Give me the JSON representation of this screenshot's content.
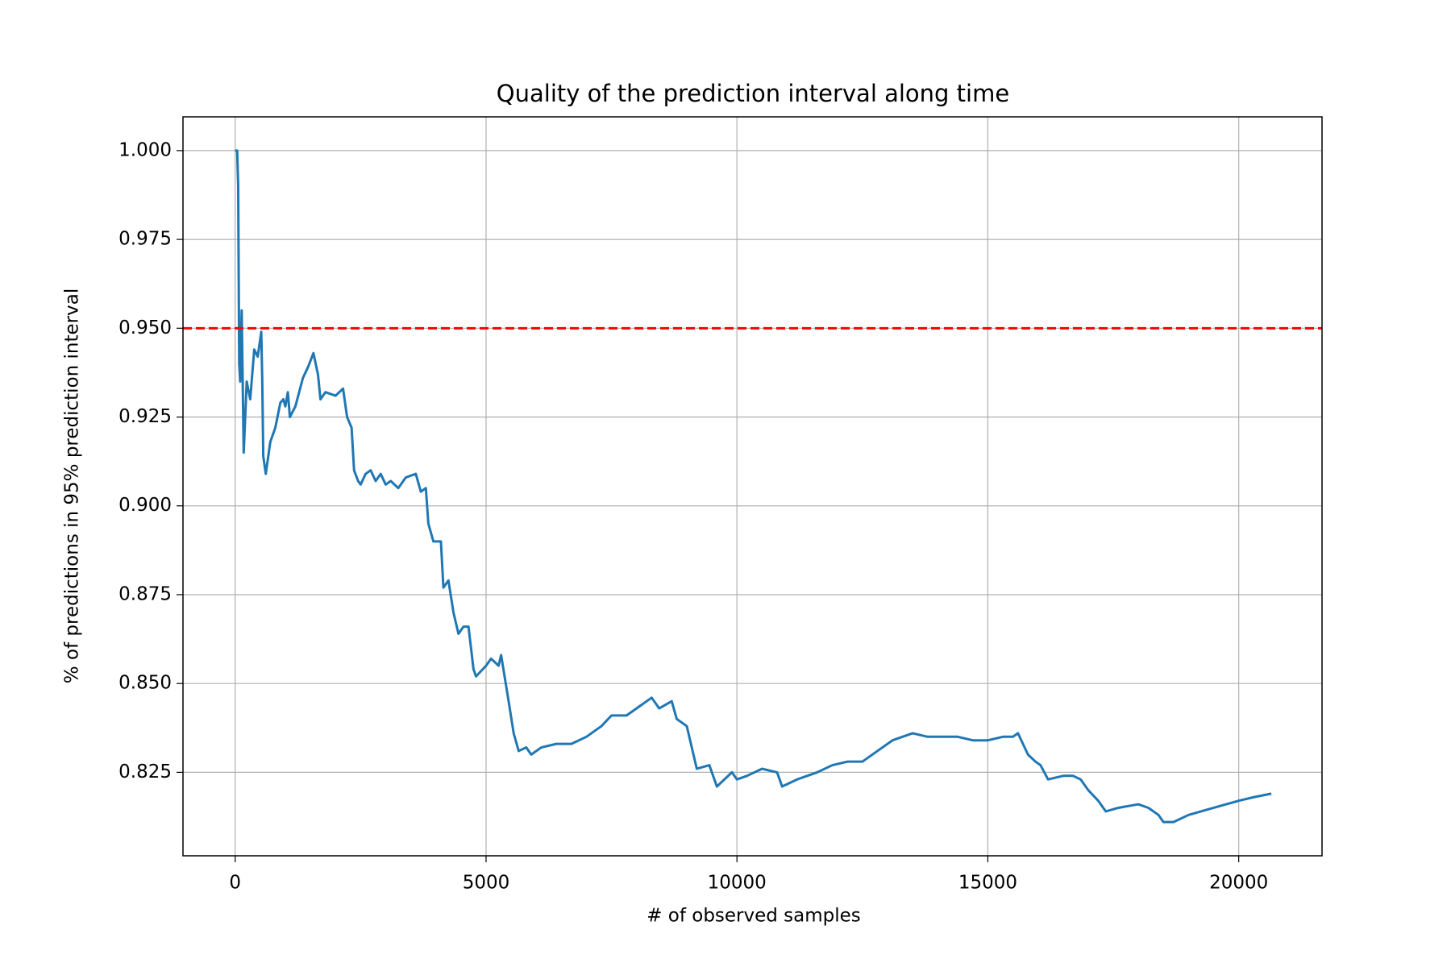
{
  "chart_data": {
    "type": "line",
    "title": "Quality of the prediction interval along time",
    "x_label": "# of observed samples",
    "y_label": "% of predictions in 95% prediction interval",
    "xlim": [
      -1040,
      21660
    ],
    "ylim": [
      0.8015,
      1.0095
    ],
    "xticks": [
      0,
      5000,
      10000,
      15000,
      20000
    ],
    "yticks": [
      {
        "value": 0.825,
        "label": "0.825"
      },
      {
        "value": 0.85,
        "label": "0.850"
      },
      {
        "value": 0.875,
        "label": "0.875"
      },
      {
        "value": 0.9,
        "label": "0.900"
      },
      {
        "value": 0.925,
        "label": "0.925"
      },
      {
        "value": 0.95,
        "label": "0.950"
      },
      {
        "value": 0.975,
        "label": "0.975"
      },
      {
        "value": 1.0,
        "label": "1.000"
      }
    ],
    "grid": true,
    "reference_line": {
      "value": 0.95,
      "color": "#ff0000"
    },
    "series": [
      {
        "color": "#1f77b4",
        "x": [
          0,
          40,
          60,
          80,
          100,
          130,
          170,
          230,
          300,
          380,
          450,
          520,
          540,
          560,
          610,
          700,
          800,
          900,
          960,
          1000,
          1050,
          1090,
          1200,
          1350,
          1450,
          1560,
          1650,
          1700,
          1800,
          2000,
          2150,
          2230,
          2320,
          2370,
          2450,
          2500,
          2600,
          2700,
          2800,
          2900,
          3000,
          3100,
          3250,
          3400,
          3600,
          3700,
          3800,
          3850,
          3950,
          4100,
          4150,
          4250,
          4350,
          4450,
          4550,
          4650,
          4750,
          4800,
          5000,
          5100,
          5250,
          5300,
          5450,
          5550,
          5650,
          5800,
          5900,
          6100,
          6400,
          6700,
          7000,
          7300,
          7500,
          7800,
          8100,
          8300,
          8450,
          8700,
          8800,
          9000,
          9100,
          9200,
          9450,
          9600,
          9900,
          10000,
          10200,
          10500,
          10800,
          10900,
          11200,
          11600,
          11900,
          12200,
          12500,
          12800,
          13100,
          13500,
          13800,
          14100,
          14400,
          14700,
          15000,
          15300,
          15500,
          15600,
          15800,
          15950,
          16050,
          16200,
          16500,
          16700,
          16850,
          17000,
          17200,
          17350,
          17600,
          18000,
          18200,
          18400,
          18500,
          18700,
          19000,
          19500,
          20000,
          20300,
          20650
        ],
        "values": [
          1.0,
          1.0,
          0.99,
          0.94,
          0.935,
          0.955,
          0.915,
          0.935,
          0.93,
          0.944,
          0.942,
          0.949,
          0.935,
          0.914,
          0.909,
          0.918,
          0.922,
          0.929,
          0.93,
          0.928,
          0.932,
          0.925,
          0.928,
          0.936,
          0.939,
          0.943,
          0.937,
          0.93,
          0.932,
          0.931,
          0.933,
          0.925,
          0.922,
          0.91,
          0.907,
          0.906,
          0.909,
          0.91,
          0.907,
          0.909,
          0.906,
          0.907,
          0.905,
          0.908,
          0.909,
          0.904,
          0.905,
          0.895,
          0.89,
          0.89,
          0.877,
          0.879,
          0.87,
          0.864,
          0.866,
          0.866,
          0.854,
          0.852,
          0.855,
          0.857,
          0.855,
          0.858,
          0.845,
          0.836,
          0.831,
          0.832,
          0.83,
          0.832,
          0.833,
          0.833,
          0.835,
          0.838,
          0.841,
          0.841,
          0.844,
          0.846,
          0.843,
          0.845,
          0.84,
          0.838,
          0.832,
          0.826,
          0.827,
          0.821,
          0.825,
          0.823,
          0.824,
          0.826,
          0.825,
          0.821,
          0.823,
          0.825,
          0.827,
          0.828,
          0.828,
          0.831,
          0.834,
          0.836,
          0.835,
          0.835,
          0.835,
          0.834,
          0.834,
          0.835,
          0.835,
          0.836,
          0.83,
          0.828,
          0.827,
          0.823,
          0.824,
          0.824,
          0.823,
          0.82,
          0.817,
          0.814,
          0.815,
          0.816,
          0.815,
          0.813,
          0.811,
          0.811,
          0.813,
          0.815,
          0.817,
          0.818,
          0.819
        ]
      }
    ]
  }
}
